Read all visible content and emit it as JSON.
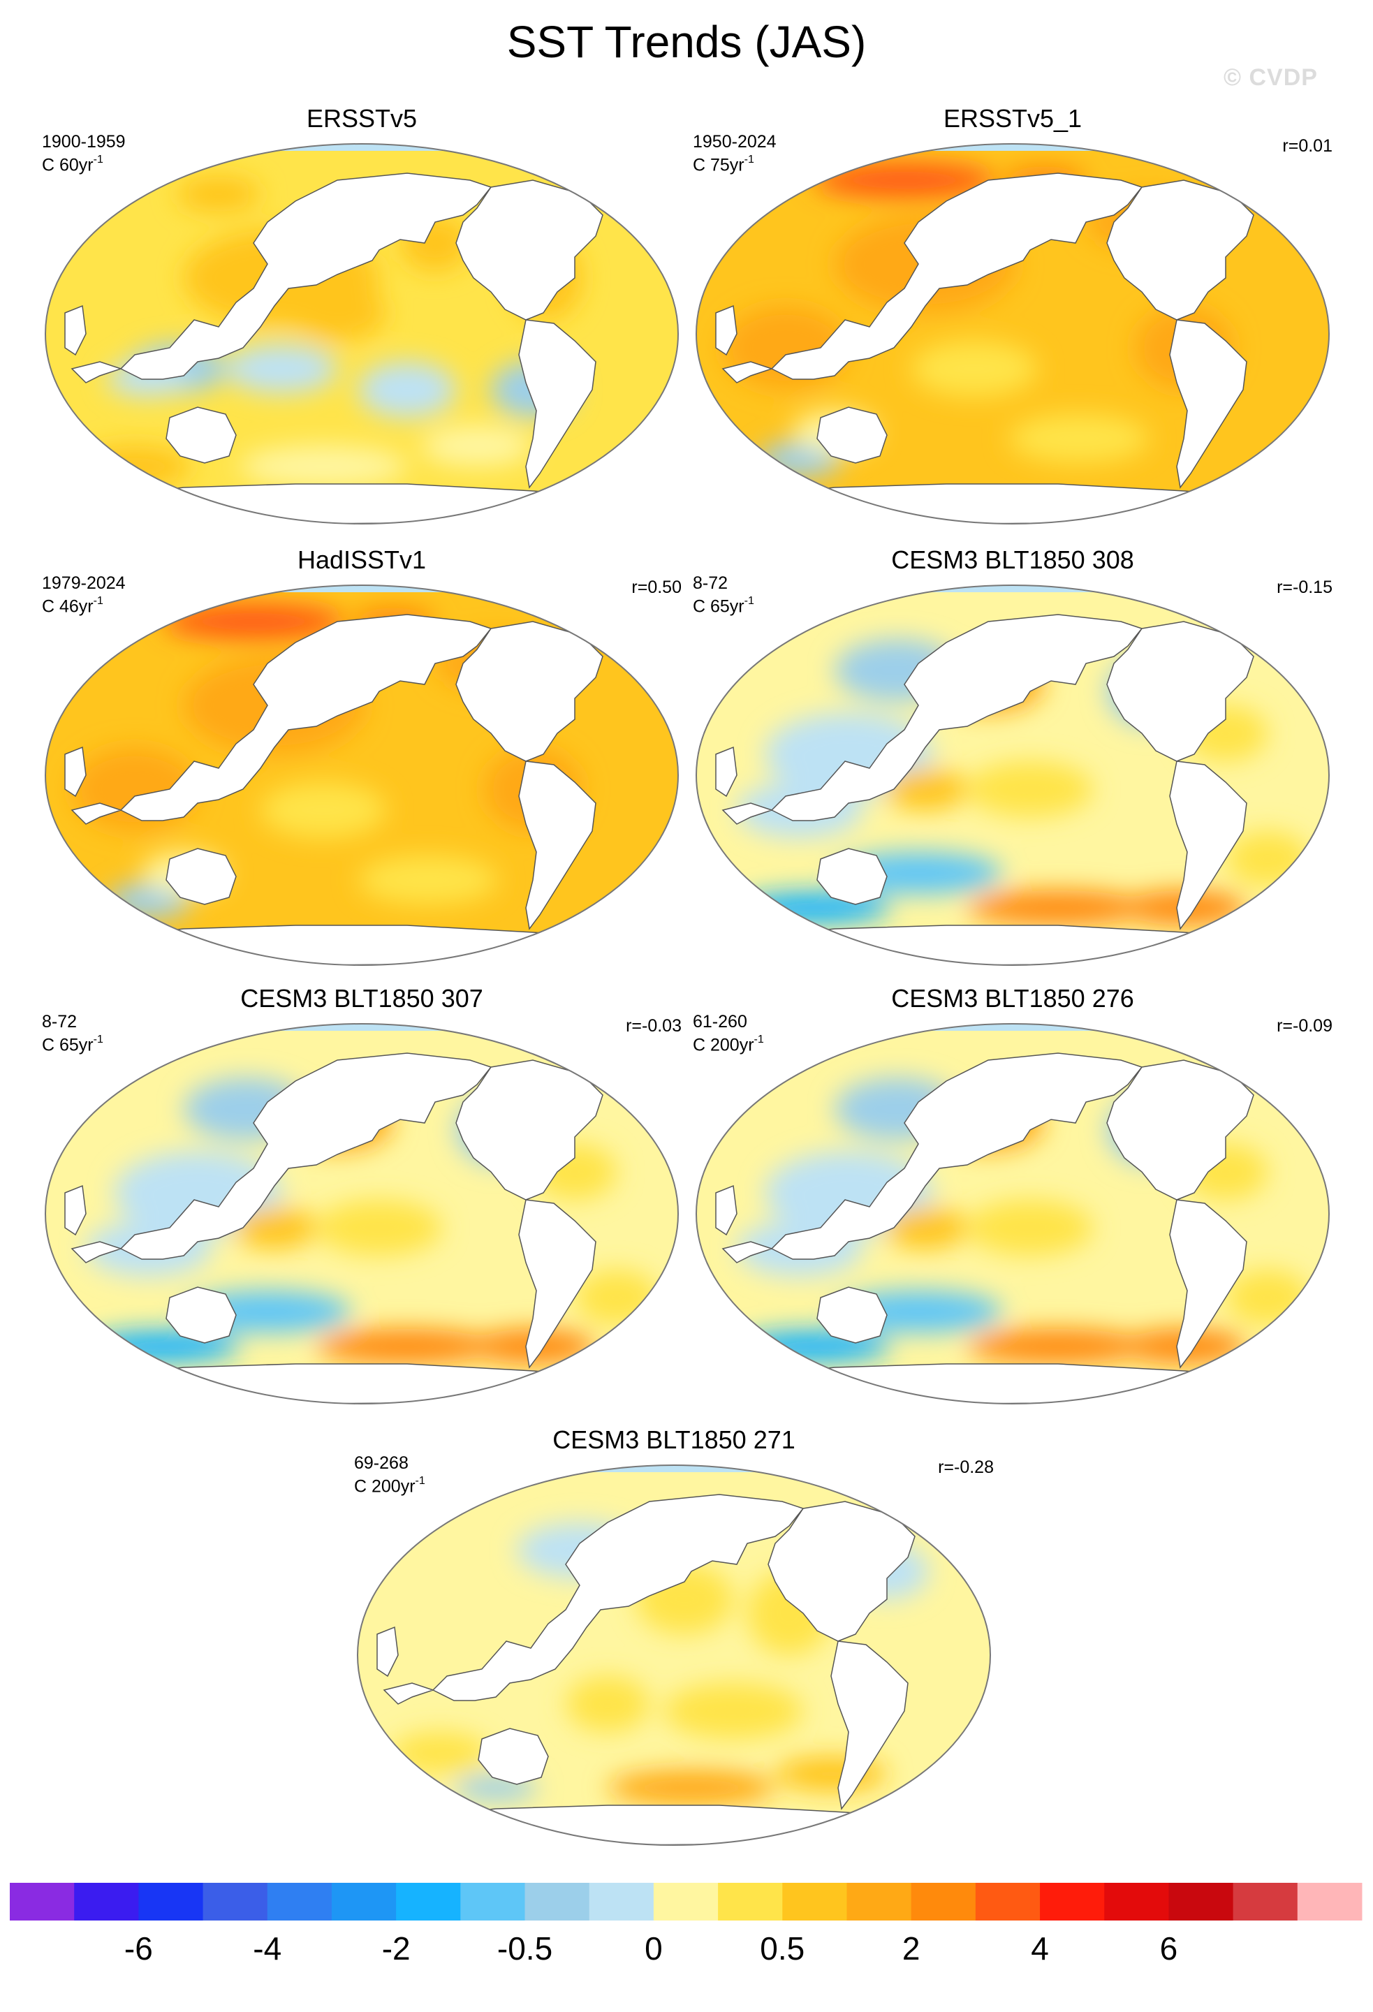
{
  "title": "SST Trends (JAS)",
  "watermark": "© CVDP",
  "panels": [
    {
      "title": "ERSSTv5",
      "period": "1900-1959",
      "units": "C 60yr",
      "units_exp": "-1",
      "corr": "",
      "palette": "warm_cool"
    },
    {
      "title": "ERSSTv5_1",
      "period": "1950-2024",
      "units": "C 75yr",
      "units_exp": "-1",
      "corr": "r=0.01",
      "palette": "warm"
    },
    {
      "title": "HadISSTv1",
      "period": "1979-2024",
      "units": "C 46yr",
      "units_exp": "-1",
      "corr": "r=0.50",
      "palette": "warm"
    },
    {
      "title": "CESM3 BLT1850 308",
      "period": "8-72",
      "units": "C 65yr",
      "units_exp": "-1",
      "corr": "r=-0.15",
      "palette": "mixed"
    },
    {
      "title": "CESM3 BLT1850 307",
      "period": "8-72",
      "units": "C 65yr",
      "units_exp": "-1",
      "corr": "r=-0.03",
      "palette": "mixed"
    },
    {
      "title": "CESM3 BLT1850 276",
      "period": "61-260",
      "units": "C 200yr",
      "units_exp": "-1",
      "corr": "r=-0.09",
      "palette": "mixed"
    },
    {
      "title": "CESM3 BLT1850 271",
      "period": "69-268",
      "units": "C 200yr",
      "units_exp": "-1",
      "corr": "r=-0.28",
      "palette": "mild"
    }
  ],
  "colorbar": {
    "colors": [
      "#8a2be2",
      "#3b1cf0",
      "#1836f5",
      "#3b5ee8",
      "#2f7ff2",
      "#1e96f5",
      "#16b3ff",
      "#5ec6f7",
      "#9ccfea",
      "#bde2f4",
      "#fff6a0",
      "#ffe44a",
      "#ffc51e",
      "#ffa915",
      "#ff8a0c",
      "#ff5a12",
      "#ff1c0a",
      "#e30b0b",
      "#c9080e",
      "#d63b3f",
      "#ffb6b8"
    ],
    "labels": [
      "-6",
      "-4",
      "-2",
      "-0.5",
      "0",
      "0.5",
      "2",
      "4",
      "6"
    ]
  }
}
